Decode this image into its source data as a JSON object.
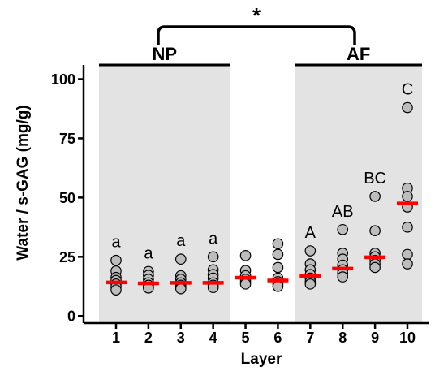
{
  "chart_data": {
    "type": "scatter",
    "xlabel": "Layer",
    "ylabel": "Water / s-GAG (mg/g)",
    "ylim": [
      -3,
      106
    ],
    "yticks": [
      0,
      25,
      50,
      75,
      100
    ],
    "categories": [
      "1",
      "2",
      "3",
      "4",
      "5",
      "6",
      "7",
      "8",
      "9",
      "10"
    ],
    "regions": [
      {
        "label": "NP",
        "layers": [
          "1",
          "4"
        ]
      },
      {
        "label": "AF",
        "layers": [
          "7",
          "10"
        ]
      }
    ],
    "significance": {
      "label": "*",
      "between": [
        "NP",
        "AF"
      ]
    },
    "groups": [
      {
        "layer": "1",
        "letter": "a",
        "median": 14.2,
        "points": [
          23.5,
          19.0,
          16.3,
          15.0,
          13.5,
          12.3,
          11.0
        ]
      },
      {
        "layer": "2",
        "letter": "a",
        "median": 13.8,
        "points": [
          18.8,
          17.2,
          15.5,
          14.0,
          13.0,
          12.2,
          11.8
        ]
      },
      {
        "layer": "3",
        "letter": "a",
        "median": 14.0,
        "points": [
          24.0,
          17.0,
          15.5,
          14.0,
          13.0,
          12.0,
          11.5
        ]
      },
      {
        "layer": "4",
        "letter": "a",
        "median": 14.0,
        "points": [
          25.0,
          19.5,
          17.5,
          16.0,
          14.0,
          13.0,
          12.0
        ]
      },
      {
        "layer": "5",
        "letter": "",
        "median": 16.2,
        "points": [
          25.5,
          19.2,
          17.0,
          15.5,
          14.5,
          13.5
        ]
      },
      {
        "layer": "6",
        "letter": "",
        "median": 15.0,
        "points": [
          30.5,
          26.0,
          20.5,
          16.0,
          14.5,
          13.5,
          12.5
        ]
      },
      {
        "layer": "7",
        "letter": "A",
        "median": 16.8,
        "points": [
          27.5,
          22.0,
          19.5,
          17.5,
          16.0,
          14.5,
          13.5
        ]
      },
      {
        "layer": "8",
        "letter": "AB",
        "median": 20.0,
        "points": [
          36.5,
          26.5,
          24.0,
          21.5,
          19.5,
          18.0,
          16.5
        ]
      },
      {
        "layer": "9",
        "letter": "BC",
        "median": 24.8,
        "points": [
          50.5,
          36.0,
          26.5,
          25.0,
          23.5,
          22.0,
          20.5
        ]
      },
      {
        "layer": "10",
        "letter": "C",
        "median": 47.5,
        "points": [
          88.0,
          54.0,
          50.5,
          46.0,
          37.5,
          26.0,
          22.0
        ]
      }
    ],
    "colors": {
      "region_fill": "#e3e3e3",
      "point_fill": "#bdbdbd",
      "point_stroke": "#000000",
      "median": "#ff0000"
    }
  }
}
